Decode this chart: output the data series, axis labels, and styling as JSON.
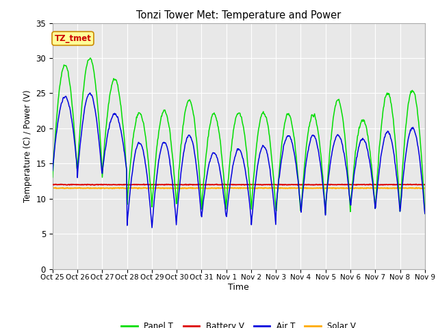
{
  "title": "Tonzi Tower Met: Temperature and Power",
  "xlabel": "Time",
  "ylabel": "Temperature (C) / Power (V)",
  "ylim": [
    0,
    35
  ],
  "yticks": [
    0,
    5,
    10,
    15,
    20,
    25,
    30,
    35
  ],
  "xtick_labels": [
    "Oct 25",
    "Oct 26",
    "Oct 27",
    "Oct 28",
    "Oct 29",
    "Oct 30",
    "Oct 31",
    "Nov 1",
    "Nov 2",
    "Nov 3",
    "Nov 4",
    "Nov 5",
    "Nov 6",
    "Nov 7",
    "Nov 8",
    "Nov 9"
  ],
  "fig_bg_color": "#ffffff",
  "plot_bg_color": "#e8e8e8",
  "grid_color": "#ffffff",
  "panel_t_color": "#00dd00",
  "battery_v_color": "#dd0000",
  "air_t_color": "#0000dd",
  "solar_v_color": "#ffaa00",
  "legend_label_panel": "Panel T",
  "legend_label_battery": "Battery V",
  "legend_label_air": "Air T",
  "legend_label_solar": "Solar V",
  "watermark_text": "TZ_tmet",
  "watermark_color": "#cc0000",
  "watermark_bg": "#ffff99",
  "watermark_border": "#cc8800",
  "n_days": 15,
  "panel_peaks": [
    29.0,
    30.0,
    27.0,
    22.2,
    22.5,
    24.0,
    22.0,
    22.2,
    22.3,
    22.0,
    22.0,
    24.0,
    21.2,
    25.0,
    25.5
  ],
  "panel_nights": [
    13.0,
    14.0,
    13.0,
    9.0,
    8.5,
    9.0,
    8.0,
    9.0,
    8.0,
    7.5,
    7.5,
    8.0,
    8.5,
    8.0,
    8.0
  ],
  "air_peaks": [
    24.5,
    25.0,
    22.0,
    18.0,
    18.0,
    19.0,
    16.5,
    17.0,
    17.5,
    19.0,
    19.0,
    19.0,
    18.5,
    19.5,
    20.0
  ],
  "air_nights": [
    14.0,
    13.0,
    13.5,
    6.0,
    5.5,
    7.0,
    7.0,
    7.0,
    5.8,
    8.5,
    7.5,
    9.0,
    8.5,
    8.0,
    7.8
  ],
  "battery_v_mean": 12.0,
  "solar_v_mean": 11.5
}
